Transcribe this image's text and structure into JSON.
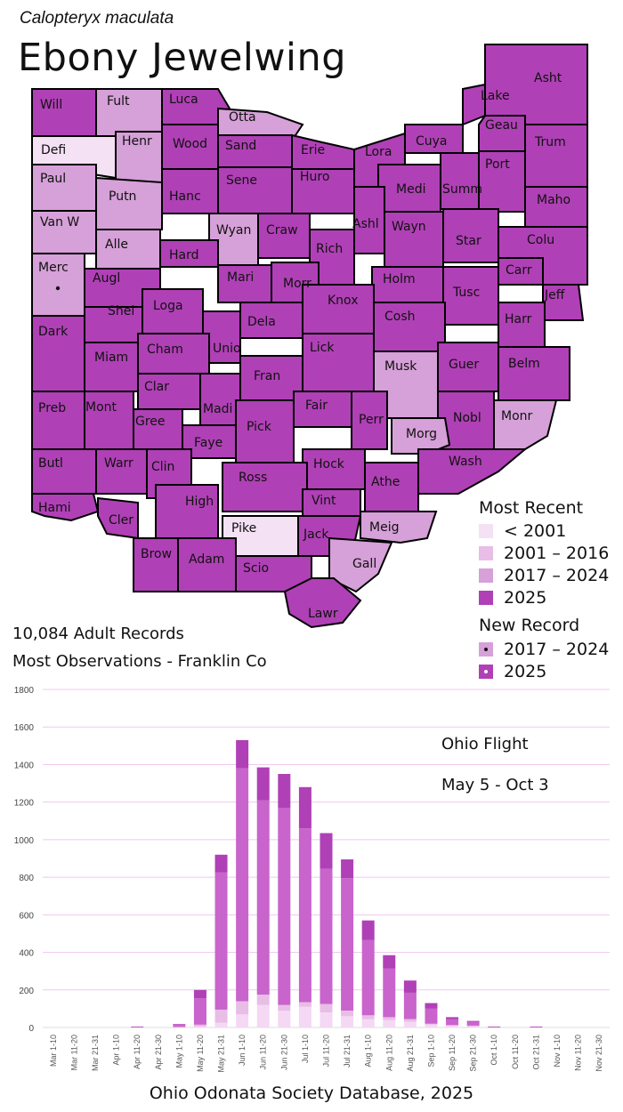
{
  "species": {
    "scientific": "Calopteryx maculata",
    "common": "Ebony Jewelwing"
  },
  "colors": {
    "pre2001": "#f4e1f4",
    "c2001_2016": "#e8bde6",
    "c2017_2024": "#d6a0d8",
    "c2025": "#b040b6",
    "border": "#000000",
    "grid": "#f0c8f0",
    "seg_dark": "#b040b6",
    "seg_mid": "#c864cc",
    "seg_light": "#e8bde6",
    "seg_pale": "#f4d8f4"
  },
  "map": {
    "counties": [
      {
        "name": "Will",
        "cat": "2025"
      },
      {
        "name": "Fult",
        "cat": "2017-2024"
      },
      {
        "name": "Luca",
        "cat": "2025"
      },
      {
        "name": "Otta",
        "cat": "2017-2024"
      },
      {
        "name": "Defi",
        "cat": "<2001"
      },
      {
        "name": "Henr",
        "cat": "2017-2024"
      },
      {
        "name": "Wood",
        "cat": "2025"
      },
      {
        "name": "Sand",
        "cat": "2025"
      },
      {
        "name": "Erie",
        "cat": "2025"
      },
      {
        "name": "Lora",
        "cat": "2025"
      },
      {
        "name": "Cuya",
        "cat": "2025"
      },
      {
        "name": "Lake",
        "cat": "2025"
      },
      {
        "name": "Asht",
        "cat": "2025"
      },
      {
        "name": "Geau",
        "cat": "2025"
      },
      {
        "name": "Trum",
        "cat": "2025"
      },
      {
        "name": "Paul",
        "cat": "2017-2024"
      },
      {
        "name": "Putn",
        "cat": "2017-2024"
      },
      {
        "name": "Hanc",
        "cat": "2025"
      },
      {
        "name": "Sene",
        "cat": "2025"
      },
      {
        "name": "Huro",
        "cat": "2025"
      },
      {
        "name": "Medi",
        "cat": "2025"
      },
      {
        "name": "Summ",
        "cat": "2025"
      },
      {
        "name": "Port",
        "cat": "2025"
      },
      {
        "name": "Maho",
        "cat": "2025"
      },
      {
        "name": "Van W",
        "cat": "2017-2024"
      },
      {
        "name": "Alle",
        "cat": "2017-2024"
      },
      {
        "name": "Wyan",
        "cat": "2017-2024"
      },
      {
        "name": "Craw",
        "cat": "2025"
      },
      {
        "name": "Ashl",
        "cat": "2025"
      },
      {
        "name": "Wayn",
        "cat": "2025"
      },
      {
        "name": "Star",
        "cat": "2025"
      },
      {
        "name": "Colu",
        "cat": "2025"
      },
      {
        "name": "Merc",
        "cat": "2017-2024",
        "new": "2017-2024"
      },
      {
        "name": "Augl",
        "cat": "2025"
      },
      {
        "name": "Hard",
        "cat": "2025"
      },
      {
        "name": "Mari",
        "cat": "2025"
      },
      {
        "name": "Rich",
        "cat": "2025"
      },
      {
        "name": "Morr",
        "cat": "2025"
      },
      {
        "name": "Holm",
        "cat": "2025"
      },
      {
        "name": "Carr",
        "cat": "2025"
      },
      {
        "name": "Tusc",
        "cat": "2025"
      },
      {
        "name": "Jeff",
        "cat": "2025"
      },
      {
        "name": "Shel",
        "cat": "2025"
      },
      {
        "name": "Loga",
        "cat": "2025"
      },
      {
        "name": "Unio",
        "cat": "2025"
      },
      {
        "name": "Dela",
        "cat": "2025"
      },
      {
        "name": "Knox",
        "cat": "2025"
      },
      {
        "name": "Cosh",
        "cat": "2025"
      },
      {
        "name": "Harr",
        "cat": "2025"
      },
      {
        "name": "Dark",
        "cat": "2025"
      },
      {
        "name": "Miam",
        "cat": "2025"
      },
      {
        "name": "Cham",
        "cat": "2025"
      },
      {
        "name": "Lick",
        "cat": "2025"
      },
      {
        "name": "Musk",
        "cat": "2017-2024"
      },
      {
        "name": "Guer",
        "cat": "2025"
      },
      {
        "name": "Belm",
        "cat": "2025"
      },
      {
        "name": "Clar",
        "cat": "2025"
      },
      {
        "name": "Fran",
        "cat": "2025"
      },
      {
        "name": "Preb",
        "cat": "2025"
      },
      {
        "name": "Mont",
        "cat": "2025"
      },
      {
        "name": "Gree",
        "cat": "2025"
      },
      {
        "name": "Madi",
        "cat": "2025"
      },
      {
        "name": "Fair",
        "cat": "2025"
      },
      {
        "name": "Perr",
        "cat": "2025"
      },
      {
        "name": "Nobl",
        "cat": "2025"
      },
      {
        "name": "Monr",
        "cat": "2017-2024"
      },
      {
        "name": "Faye",
        "cat": "2025"
      },
      {
        "name": "Pick",
        "cat": "2025"
      },
      {
        "name": "Morg",
        "cat": "2017-2024"
      },
      {
        "name": "Butl",
        "cat": "2025"
      },
      {
        "name": "Warr",
        "cat": "2025"
      },
      {
        "name": "Clin",
        "cat": "2025"
      },
      {
        "name": "Hock",
        "cat": "2025"
      },
      {
        "name": "Wash",
        "cat": "2025"
      },
      {
        "name": "Athe",
        "cat": "2025"
      },
      {
        "name": "Ross",
        "cat": "2025"
      },
      {
        "name": "Hami",
        "cat": "2025"
      },
      {
        "name": "Cler",
        "cat": "2025"
      },
      {
        "name": "High",
        "cat": "2025"
      },
      {
        "name": "Vint",
        "cat": "2025"
      },
      {
        "name": "Pike",
        "cat": "<2001"
      },
      {
        "name": "Jack",
        "cat": "2025"
      },
      {
        "name": "Meig",
        "cat": "2017-2024"
      },
      {
        "name": "Brow",
        "cat": "2025"
      },
      {
        "name": "Adam",
        "cat": "2025"
      },
      {
        "name": "Scio",
        "cat": "2025"
      },
      {
        "name": "Gall",
        "cat": "2017-2024"
      },
      {
        "name": "Lawr",
        "cat": "2025"
      }
    ]
  },
  "legend": {
    "most_recent_title": "Most Recent",
    "items": [
      {
        "label": "< 2001",
        "color": "#f4e1f4"
      },
      {
        "label": "2001 – 2016",
        "color": "#e8bde6"
      },
      {
        "label": "2017 – 2024",
        "color": "#d6a0d8"
      },
      {
        "label": "2025",
        "color": "#b040b6"
      }
    ],
    "new_record_title": "New Record",
    "new_items": [
      {
        "label": "2017 – 2024",
        "color": "#d6a0d8",
        "dot": "#111111"
      },
      {
        "label": "2025",
        "color": "#b040b6",
        "dot": "#ffffff"
      }
    ]
  },
  "stats": {
    "records": "10,084 Adult Records",
    "most_obs": "Most Observations - Franklin Co"
  },
  "chart_notes": {
    "line1": "Ohio Flight",
    "line2": "May 5 - Oct 3"
  },
  "footer": "Ohio Odonata Society Database, 2025",
  "chart_data": {
    "type": "bar",
    "stacked": true,
    "categories": [
      "Mar 1-10",
      "Mar 11-20",
      "Mar 21-31",
      "Apr 1-10",
      "Apr 11-20",
      "Apr 21-30",
      "May 1-10",
      "May 11-20",
      "May 21-31",
      "Jun 1-10",
      "Jun 11-20",
      "Jun 21-30",
      "Jul 1-10",
      "Jul 11-20",
      "Jul 21-31",
      "Aug 1-10",
      "Aug 11-20",
      "Aug 21-31",
      "Sep 1-10",
      "Sep 11-20",
      "Sep 21-30",
      "Oct 1-10",
      "Oct 11-20",
      "Oct 21-31",
      "Nov 1-10",
      "Nov 11-20",
      "Nov 21-30"
    ],
    "totals": [
      0,
      0,
      0,
      0,
      5,
      0,
      18,
      200,
      920,
      1530,
      1385,
      1350,
      1280,
      1035,
      895,
      570,
      385,
      250,
      130,
      55,
      35,
      5,
      0,
      5,
      0,
      0,
      0
    ],
    "series": [
      {
        "values": [
          0,
          0,
          0,
          0,
          0,
          0,
          0,
          5,
          25,
          70,
          120,
          90,
          110,
          80,
          60,
          45,
          40,
          30,
          15,
          8,
          5,
          0,
          0,
          0,
          0,
          0,
          0
        ]
      },
      {
        "values": [
          0,
          0,
          0,
          0,
          0,
          0,
          3,
          10,
          70,
          70,
          55,
          30,
          25,
          45,
          30,
          20,
          15,
          15,
          5,
          5,
          5,
          0,
          0,
          0,
          0,
          0,
          0
        ]
      },
      {
        "values": [
          0,
          0,
          0,
          0,
          3,
          0,
          10,
          140,
          730,
          1240,
          1035,
          1050,
          925,
          720,
          705,
          400,
          260,
          140,
          80,
          32,
          20,
          3,
          0,
          3,
          0,
          0,
          0
        ]
      },
      {
        "values": [
          0,
          0,
          0,
          0,
          2,
          0,
          5,
          45,
          95,
          150,
          175,
          180,
          220,
          190,
          100,
          105,
          70,
          65,
          30,
          10,
          5,
          2,
          0,
          2,
          0,
          0,
          0
        ]
      }
    ],
    "ylim": [
      0,
      1800
    ],
    "yticks": [
      0,
      200,
      400,
      600,
      800,
      1000,
      1200,
      1400,
      1600,
      1800
    ],
    "grid": true
  }
}
